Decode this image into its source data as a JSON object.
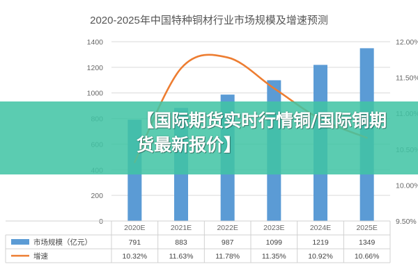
{
  "chart_data": {
    "type": "bar",
    "title": "2020-2025年中国特种铜材行业市场规模及增速预测",
    "categories": [
      "2020E",
      "2021E",
      "2022E",
      "2023E",
      "2024E",
      "2025E"
    ],
    "series": [
      {
        "name": "市场规模（亿元）",
        "type": "bar",
        "axis": "left",
        "color": "#5b9bd5",
        "values": [
          791,
          883,
          987,
          1099,
          1219,
          1349
        ],
        "labels": [
          "791",
          "883",
          "987",
          "1099",
          "1219",
          "1349"
        ]
      },
      {
        "name": "增速",
        "type": "line",
        "axis": "right",
        "color": "#ed7d31",
        "values": [
          10.32,
          11.63,
          11.78,
          11.35,
          10.92,
          10.66
        ],
        "labels": [
          "10.32%",
          "11.63%",
          "11.78%",
          "11.35%",
          "10.92%",
          "10.66%"
        ]
      }
    ],
    "ylim": [
      0,
      1400
    ],
    "y_ticks": [
      "0",
      "200",
      "400",
      "600",
      "800",
      "1000",
      "1200",
      "1400"
    ],
    "y2lim": [
      9.5,
      12.0
    ],
    "y2_ticks": [
      "9.50%",
      "10.00%",
      "10.50%",
      "11.00%",
      "11.50%",
      "12.00%"
    ],
    "grid": true,
    "legend": "data-table-bottom"
  },
  "overlay": {
    "banner_text": "【国际期货实时行情铜/国际铜期货最新报价】"
  }
}
